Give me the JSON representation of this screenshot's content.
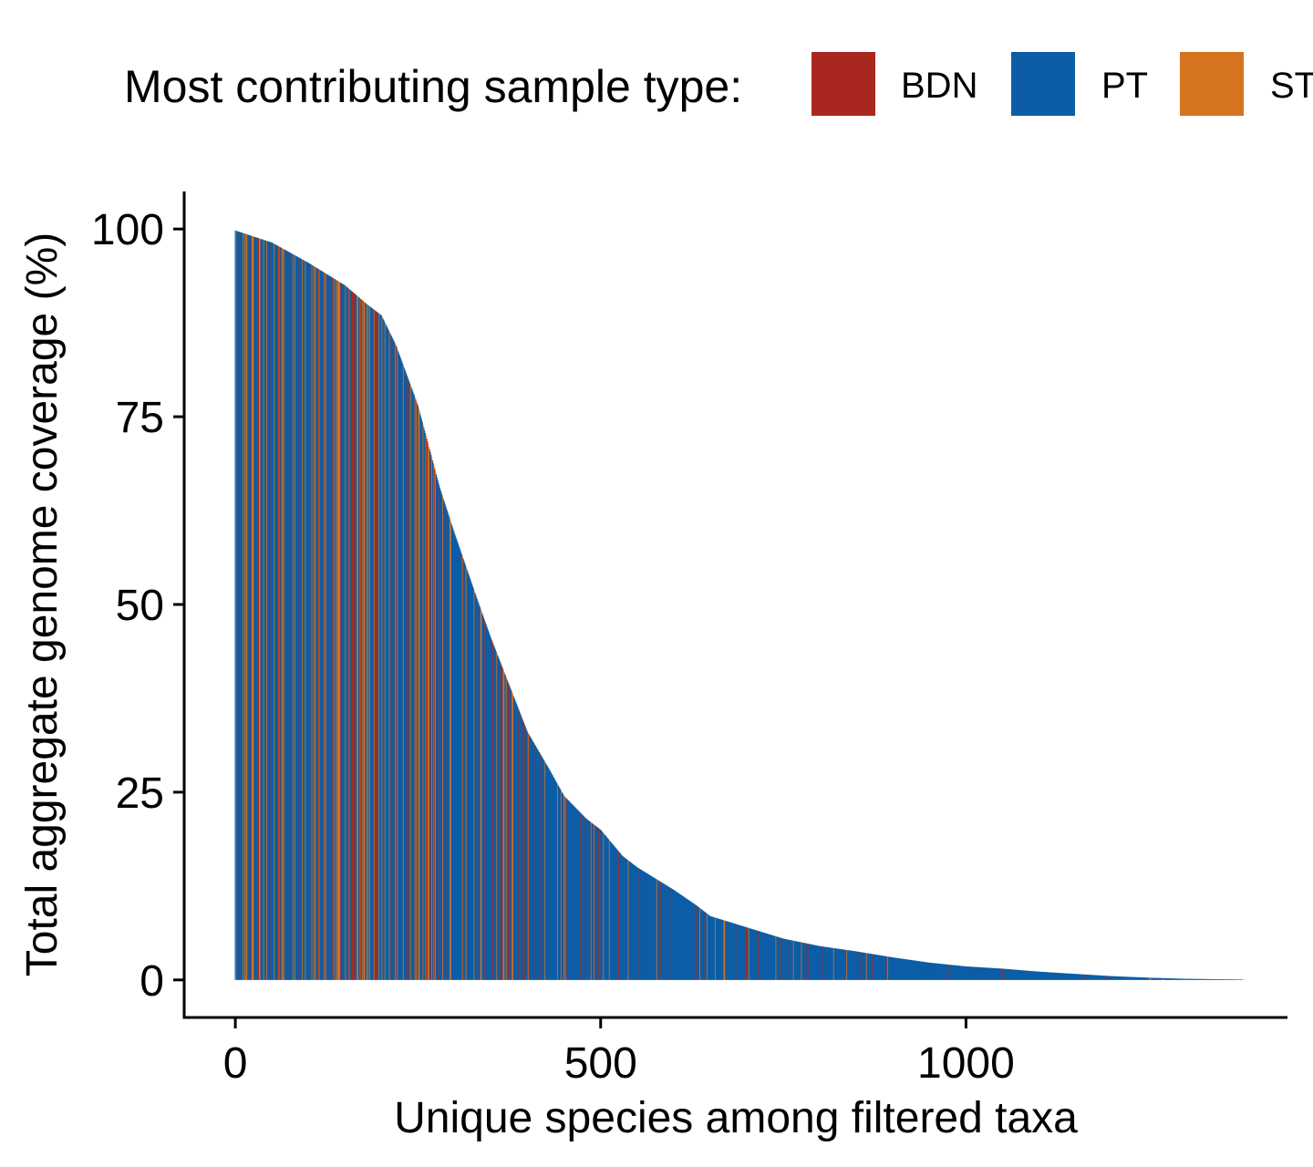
{
  "legend": {
    "title": "Most contributing sample type:",
    "items": [
      {
        "label": "BDN",
        "color": "#A8281F"
      },
      {
        "label": "PT",
        "color": "#0C5DA6"
      },
      {
        "label": "ST",
        "color": "#D5731F"
      }
    ]
  },
  "chart_data": {
    "type": "bar",
    "xlabel": "Unique species among filtered taxa",
    "ylabel": "Total aggregate genome coverage (%)",
    "xlim": [
      -70,
      1440
    ],
    "ylim": [
      -5,
      105
    ],
    "xticks": [
      0,
      500,
      1000
    ],
    "yticks": [
      0,
      25,
      50,
      75,
      100
    ],
    "n_species": 1380,
    "legend_position": "top",
    "grid": false,
    "series_colors": {
      "BDN": "#A8281F",
      "PT": "#0C5DA6",
      "ST": "#D5731F"
    },
    "coverage_curve": {
      "x": [
        0,
        50,
        100,
        150,
        180,
        200,
        220,
        250,
        280,
        300,
        330,
        350,
        380,
        400,
        430,
        450,
        480,
        500,
        530,
        550,
        600,
        630,
        650,
        700,
        750,
        800,
        850,
        900,
        950,
        1000,
        1050,
        1100,
        1150,
        1200,
        1250,
        1300,
        1380
      ],
      "y": [
        99.8,
        98.2,
        95.5,
        92.5,
        90.0,
        88.5,
        84.5,
        76.5,
        65.5,
        59.5,
        51.0,
        45.5,
        38.0,
        33.0,
        28.0,
        24.5,
        21.5,
        20.0,
        16.5,
        15.0,
        12.0,
        10.0,
        8.5,
        7.0,
        5.5,
        4.5,
        3.8,
        3.0,
        2.3,
        1.8,
        1.5,
        1.1,
        0.8,
        0.5,
        0.3,
        0.15,
        0.05
      ]
    },
    "dominant_type_by_range": [
      {
        "x_range": [
          0,
          300
        ],
        "BDN": 0.18,
        "PT": 0.62,
        "ST": 0.2
      },
      {
        "x_range": [
          300,
          500
        ],
        "BDN": 0.1,
        "PT": 0.8,
        "ST": 0.1
      },
      {
        "x_range": [
          500,
          700
        ],
        "BDN": 0.07,
        "PT": 0.88,
        "ST": 0.05
      },
      {
        "x_range": [
          700,
          900
        ],
        "BDN": 0.03,
        "PT": 0.95,
        "ST": 0.02
      },
      {
        "x_range": [
          900,
          1380
        ],
        "BDN": 0.01,
        "PT": 0.98,
        "ST": 0.01
      }
    ]
  }
}
